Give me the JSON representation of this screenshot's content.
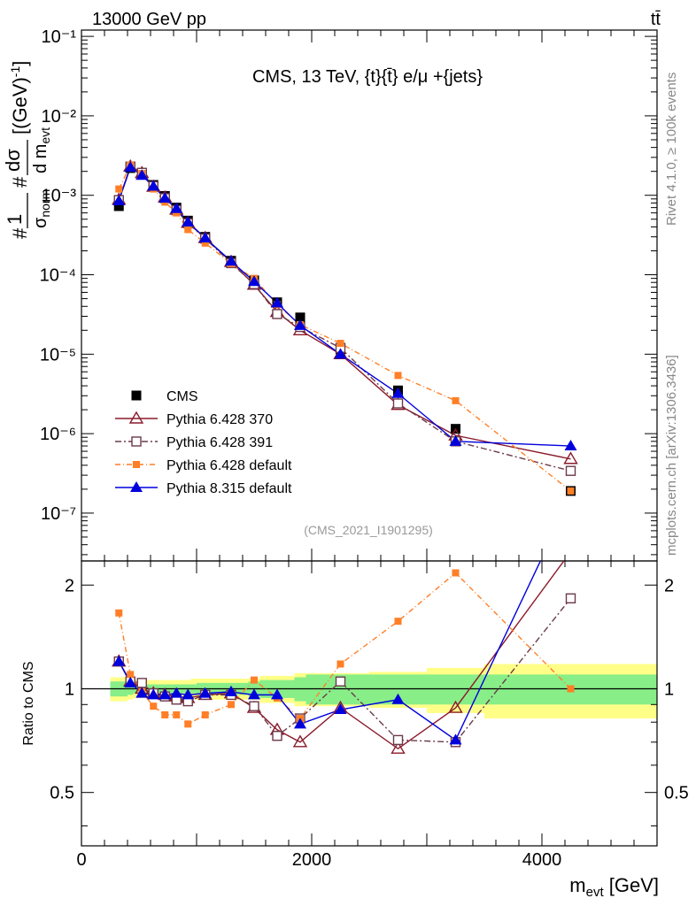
{
  "header": {
    "left": "13000 GeV pp",
    "right": "tt̄"
  },
  "side_labels": {
    "rivet": "Rivet 4.1.0, ≥ 100k events",
    "mcplots": "mcplots.cern.ch [arXiv:1306.3436]"
  },
  "main_title": "CMS, 13 TeV, {t}{t̄} e/μ +{jets}",
  "analysis_id": "(CMS_2021_I1901295)",
  "colors": {
    "cms": "#000000",
    "py6_370": "#8b1a2b",
    "py6_391": "#6b3a4a",
    "py6_default": "#ff7f27",
    "py8": "#0000dd",
    "band_stat": "#88ee88",
    "band_tot": "#ffff88"
  },
  "chart_data": [
    {
      "type": "line",
      "panel": "main",
      "title": "CMS, 13 TeV, {t}{t̄} e/μ +{jets}",
      "ylabel": "# 1/σ_norm # dσ/d m_evt [(GeV)^-1]",
      "yscale": "log",
      "xlim": [
        0,
        5000
      ],
      "ylim": [
        2.5e-08,
        0.12
      ],
      "y_ticks": [
        {
          "value": 1e-07,
          "label": "10⁻⁷"
        },
        {
          "value": 1e-06,
          "label": "10⁻⁶"
        },
        {
          "value": 1e-05,
          "label": "10⁻⁵"
        },
        {
          "value": 0.0001,
          "label": "10⁻⁴"
        },
        {
          "value": 0.001,
          "label": "10⁻³"
        },
        {
          "value": 0.01,
          "label": "10⁻²"
        },
        {
          "value": 0.1,
          "label": "10⁻¹"
        }
      ],
      "x": [
        325,
        425,
        525,
        625,
        725,
        825,
        925,
        1075,
        1300,
        1500,
        1700,
        1900,
        2250,
        2750,
        3250,
        4250
      ],
      "series": [
        {
          "name": "CMS",
          "key": "cms",
          "marker": "filled-square",
          "values": [
            0.00073,
            0.0022,
            0.00185,
            0.00135,
            0.00098,
            0.0007,
            0.00048,
            0.0003,
            0.00015,
            8.5e-05,
            4.5e-05,
            2.9e-05,
            1.15e-05,
            3.5e-06,
            1.15e-06,
            1.9e-07
          ]
        },
        {
          "name": "Pythia 6.428 370",
          "key": "py6_370",
          "marker": "open-triangle",
          "dash": "",
          "values": [
            0.00088,
            0.0023,
            0.0019,
            0.00128,
            0.00094,
            0.00066,
            0.00045,
            0.00029,
            0.000145,
            7.5e-05,
            3.4e-05,
            2e-05,
            1e-05,
            2.3e-06,
            9.5e-07,
            4.8e-07
          ]
        },
        {
          "name": "Pythia 6.428 391",
          "key": "py6_391",
          "marker": "open-square",
          "dash": "7,3,2,3",
          "values": [
            0.00087,
            0.0023,
            0.00192,
            0.0013,
            0.00092,
            0.00065,
            0.000445,
            0.000285,
            0.00014,
            7.6e-05,
            3.2e-05,
            2.2e-05,
            1.2e-05,
            2.4e-06,
            8e-07,
            3.4e-07
          ]
        },
        {
          "name": "Pythia 6.428 default",
          "key": "py6_default",
          "marker": "small-square",
          "dash": "6,3,1,3",
          "values": [
            0.0012,
            0.0024,
            0.00188,
            0.0012,
            0.00082,
            0.0006,
            0.00037,
            0.00025,
            0.000138,
            9e-05,
            4.2e-05,
            2.35e-05,
            1.37e-05,
            5.4e-06,
            2.6e-06,
            1.9e-07
          ]
        },
        {
          "name": "Pythia 8.315 default",
          "key": "py8",
          "marker": "filled-triangle",
          "dash": "",
          "values": [
            0.00085,
            0.00225,
            0.00178,
            0.0013,
            0.00092,
            0.00068,
            0.00046,
            0.00029,
            0.000148,
            8.2e-05,
            4.4e-05,
            2.3e-05,
            1e-05,
            3.2e-06,
            8e-07,
            7e-07
          ]
        }
      ],
      "legend": [
        "CMS",
        "Pythia 6.428 370",
        "Pythia 6.428 391",
        "Pythia 6.428 default",
        "Pythia 8.315 default"
      ]
    },
    {
      "type": "line",
      "panel": "ratio",
      "ylabel": "Ratio to CMS",
      "xlabel": "m_evt [GeV]",
      "yscale": "log",
      "xlim": [
        0,
        5000
      ],
      "ylim": [
        0.35,
        2.35
      ],
      "y_ticks": [
        {
          "value": 0.5,
          "label": "0.5"
        },
        {
          "value": 1,
          "label": "1"
        },
        {
          "value": 2,
          "label": "2"
        }
      ],
      "x_ticks": [
        {
          "value": 0,
          "label": "0"
        },
        {
          "value": 2000,
          "label": "2000"
        },
        {
          "value": 4000,
          "label": "4000"
        }
      ],
      "x": [
        325,
        425,
        525,
        625,
        725,
        825,
        925,
        1075,
        1300,
        1500,
        1700,
        1900,
        2250,
        2750,
        3250,
        4250
      ],
      "bin_edges": [
        250,
        400,
        450,
        600,
        650,
        700,
        750,
        800,
        900,
        950,
        1000,
        1150,
        1450,
        1550,
        1850,
        1950,
        2500,
        3000,
        3500,
        5000
      ],
      "band_stat": [
        0.05,
        0.04,
        0.03,
        0.03,
        0.03,
        0.03,
        0.03,
        0.03,
        0.03,
        0.03,
        0.04,
        0.04,
        0.05,
        0.06,
        0.08,
        0.1,
        0.1,
        0.1,
        0.1
      ],
      "band_tot": [
        0.08,
        0.07,
        0.06,
        0.06,
        0.06,
        0.06,
        0.06,
        0.06,
        0.06,
        0.07,
        0.07,
        0.07,
        0.07,
        0.09,
        0.11,
        0.11,
        0.12,
        0.15,
        0.18
      ],
      "series": [
        {
          "name": "Pythia 6.428 370",
          "key": "py6_370",
          "values": [
            1.2,
            1.05,
            1.0,
            0.97,
            0.96,
            0.95,
            0.94,
            0.96,
            0.97,
            0.88,
            0.76,
            0.7,
            0.88,
            0.67,
            0.88,
            2.5
          ]
        },
        {
          "name": "Pythia 6.428 391",
          "key": "py6_391",
          "values": [
            1.2,
            1.05,
            1.04,
            0.97,
            0.95,
            0.93,
            0.92,
            0.96,
            0.96,
            0.89,
            0.73,
            0.82,
            1.05,
            0.71,
            0.7,
            1.83
          ]
        },
        {
          "name": "Pythia 6.428 default",
          "key": "py6_default",
          "values": [
            1.66,
            1.1,
            0.98,
            0.89,
            0.84,
            0.84,
            0.79,
            0.84,
            0.9,
            1.06,
            0.94,
            0.82,
            1.18,
            1.57,
            2.17,
            1.0
          ]
        },
        {
          "name": "Pythia 8.315 default",
          "key": "py8",
          "values": [
            1.2,
            1.04,
            0.97,
            0.96,
            0.96,
            0.97,
            0.96,
            0.97,
            0.98,
            0.96,
            0.96,
            0.79,
            0.87,
            0.93,
            0.71,
            3.6
          ]
        }
      ]
    }
  ]
}
